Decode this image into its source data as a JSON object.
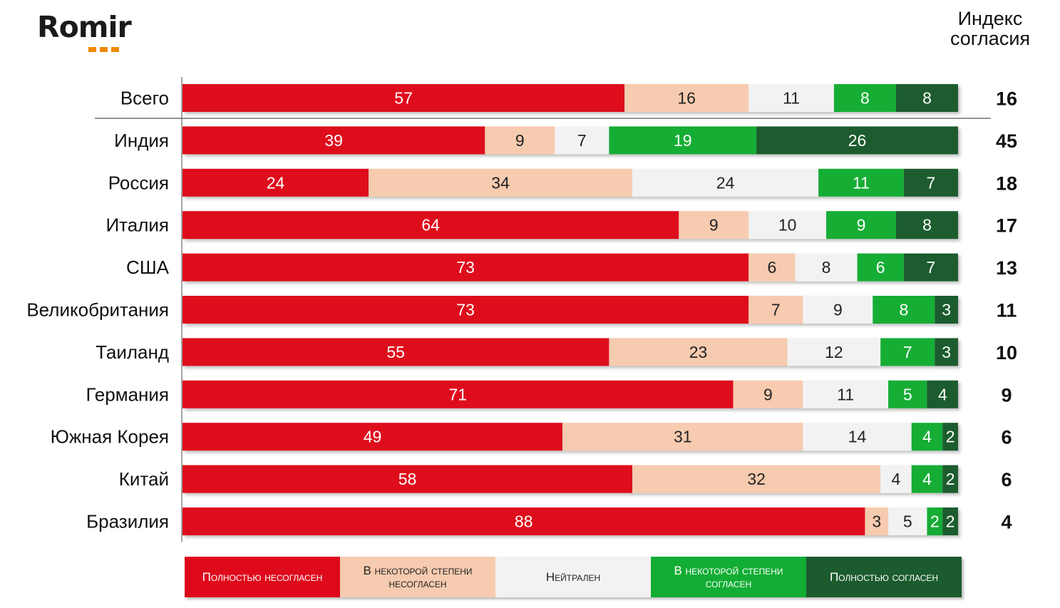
{
  "logo": {
    "text": "Romir"
  },
  "index_header": "Индекс согласия",
  "colors": {
    "full_disagree": "#de0a1c",
    "some_disagree": "#f7cbaf",
    "neutral": "#f2f2f2",
    "some_agree": "#12ad34",
    "full_agree": "#1c5b2e"
  },
  "legend": [
    {
      "label": "Полностью несогласен",
      "color": "#de0a1c",
      "text_color": "#ffffff"
    },
    {
      "label": "В некоторой степени несогласен",
      "color": "#f7cbaf",
      "text_color": "#222222"
    },
    {
      "label": "Нейтрален",
      "color": "#f2f2f2",
      "text_color": "#222222"
    },
    {
      "label": "В некоторой степени согласен",
      "color": "#12ad34",
      "text_color": "#ffffff"
    },
    {
      "label": "Полностью согласен",
      "color": "#1c5b2e",
      "text_color": "#ffffff"
    }
  ],
  "chart_data": {
    "type": "bar",
    "orientation": "horizontal-stacked-100",
    "categories": [
      "Всего",
      "Индия",
      "Россия",
      "Италия",
      "США",
      "Великобритания",
      "Таиланд",
      "Германия",
      "Южная Корея",
      "Китай",
      "Бразилия"
    ],
    "series": [
      {
        "name": "Полностью несогласен",
        "values": [
          57,
          39,
          24,
          64,
          73,
          73,
          55,
          71,
          49,
          58,
          88
        ]
      },
      {
        "name": "В некоторой степени несогласен",
        "values": [
          16,
          9,
          34,
          9,
          6,
          7,
          23,
          9,
          31,
          32,
          3
        ]
      },
      {
        "name": "Нейтрален",
        "values": [
          11,
          7,
          24,
          10,
          8,
          9,
          12,
          11,
          14,
          4,
          5
        ]
      },
      {
        "name": "В некоторой степени согласен",
        "values": [
          8,
          19,
          11,
          9,
          6,
          8,
          7,
          5,
          4,
          4,
          2
        ]
      },
      {
        "name": "Полностью согласен",
        "values": [
          8,
          26,
          7,
          8,
          7,
          3,
          3,
          4,
          2,
          2,
          2
        ]
      }
    ],
    "index_values": [
      16,
      45,
      18,
      17,
      13,
      11,
      10,
      9,
      6,
      6,
      4
    ],
    "legend_position": "bottom"
  }
}
